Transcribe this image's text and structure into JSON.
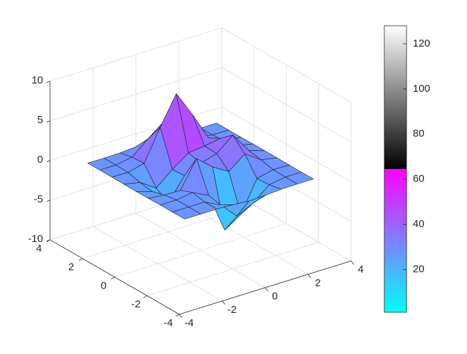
{
  "chart_data": {
    "type": "surface",
    "x": [
      -3,
      -2.25,
      -1.5,
      -0.75,
      0,
      0.75,
      1.5,
      2.25,
      3
    ],
    "y": [
      -3,
      -2.25,
      -1.5,
      -0.75,
      0,
      0.75,
      1.5,
      2.25,
      3
    ],
    "z": [
      [
        0,
        0,
        0,
        -0.08,
        -0.25,
        -0.17,
        -0.03,
        0,
        0
      ],
      [
        0,
        0.01,
        0.01,
        -1.0,
        -3.02,
        -2.05,
        -0.35,
        -0.01,
        0
      ],
      [
        0,
        0.02,
        0.33,
        -0.68,
        -5.68,
        -4.32,
        -0.44,
        0.05,
        0
      ],
      [
        -0.02,
        -0.25,
        -0.28,
        3.09,
        1.4,
        0.2,
        1.78,
        0.41,
        0.02
      ],
      [
        -0.04,
        -0.69,
        -2.77,
        0.06,
        0.98,
        1.57,
        3.27,
        0.7,
        0.03
      ],
      [
        -0.02,
        -0.42,
        -1.76,
        -0.05,
        1.42,
        1.65,
        1.99,
        0.4,
        0.02
      ],
      [
        0,
        -0.03,
        0.48,
        4.38,
        8.0,
        4.72,
        1.18,
        0.12,
        0
      ],
      [
        0,
        0.02,
        0.36,
        2.07,
        3.65,
        2.09,
        0.41,
        0.03,
        0
      ],
      [
        0,
        0,
        0.03,
        0.17,
        0.3,
        0.17,
        0.03,
        0,
        0
      ]
    ],
    "xlim": [
      -4,
      4
    ],
    "ylim": [
      -4,
      4
    ],
    "zlim": [
      -10,
      10
    ],
    "xticks": [
      -4,
      -2,
      0,
      2,
      4
    ],
    "yticks": [
      -4,
      -2,
      0,
      2,
      4
    ],
    "zticks": [
      -10,
      -5,
      0,
      5,
      10
    ],
    "grid": true,
    "colormap": {
      "cool": [
        "#00ffff",
        "#ff00ff"
      ],
      "gray": [
        "#000000",
        "#ffffff"
      ]
    },
    "colorbar": {
      "clim": [
        1,
        128
      ],
      "ticks": [
        20,
        40,
        60,
        80,
        100,
        120
      ]
    }
  }
}
